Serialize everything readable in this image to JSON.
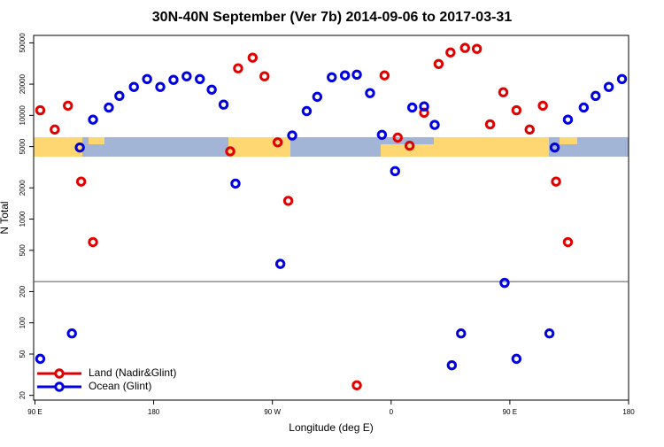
{
  "chart_data": {
    "type": "scatter",
    "title": "30N-40N September (Ver 7b)   2014-09-06 to 2017-03-31",
    "xlabel": "Longitude (deg E)",
    "ylabel": "N Total",
    "log_y": true,
    "legend": "bottom-left",
    "hline": 250,
    "xlim": [
      89,
      540
    ],
    "xticks": [
      {
        "value": 90,
        "label": "90 E"
      },
      180,
      {
        "value": 270,
        "label": "90 W"
      },
      {
        "value": 360,
        "label": "0"
      },
      {
        "value": 450,
        "label": "90 E"
      },
      {
        "value": 540,
        "label": "180"
      }
    ],
    "ylim": [
      18,
      59000
    ],
    "yticks": [
      20,
      50,
      100,
      200,
      500,
      1000,
      2000,
      5000,
      10000,
      20000,
      50000
    ],
    "series": [
      {
        "name": "Land (Nadir&Glint)",
        "color": "#e00000",
        "x": [
          94,
          105,
          115,
          125,
          134,
          238,
          244,
          255,
          264,
          274,
          282,
          334,
          355,
          365,
          374,
          385,
          396,
          405,
          416,
          425,
          435,
          445,
          455,
          465,
          475,
          485,
          494
        ],
        "values": [
          11200,
          7300,
          12400,
          2300,
          600,
          4500,
          28400,
          36000,
          23800,
          5500,
          1500,
          25,
          24300,
          6100,
          5100,
          10600,
          31300,
          40400,
          44700,
          43800,
          8200,
          16700,
          11200,
          7300,
          12400,
          2300,
          600
        ]
      },
      {
        "name": "Ocean (Glint)",
        "color": "#0000e0",
        "x": [
          94,
          118,
          124,
          134,
          146,
          154,
          165,
          175,
          185,
          195,
          205,
          215,
          224,
          233,
          242,
          276,
          285,
          296,
          304,
          315,
          325,
          334,
          344,
          353,
          363,
          376,
          385,
          393,
          406,
          413,
          446,
          455,
          480,
          484,
          494,
          506,
          515,
          525,
          535
        ],
        "values": [
          45,
          79,
          4900,
          9100,
          11900,
          15400,
          18800,
          22400,
          18800,
          22000,
          23800,
          22400,
          17700,
          12700,
          2200,
          370,
          6400,
          11000,
          15100,
          23300,
          24300,
          24700,
          16400,
          6500,
          2900,
          11900,
          12200,
          8100,
          39,
          79,
          243,
          45,
          79,
          4900,
          9100,
          11900,
          15400,
          18800,
          22400
        ]
      }
    ]
  }
}
